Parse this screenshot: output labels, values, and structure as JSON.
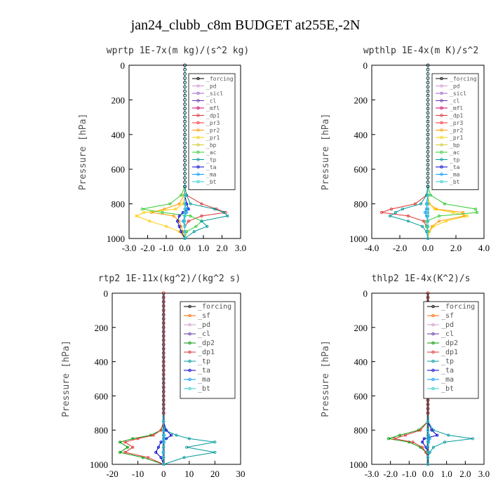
{
  "figure": {
    "title": "jan24_clubb_c8m  BUDGET at255E,-2N"
  },
  "colors": {
    "_forcing": "#000000",
    "_pd": "#cc99cc",
    "_sicl": "#9966cc",
    "_cl": "#6633aa",
    "_mfl": "#cc0066",
    "_dp1": "#dd3333",
    "_pr3": "#ff3333",
    "_pr2": "#ff9900",
    "_pr1": "#ffcc00",
    "_bp": "#cccc33",
    "_ac": "#33cc33",
    "_tp": "#009999",
    "_ta": "#0000cc",
    "_ma": "#0099ff",
    "_bt": "#33cccc",
    "_sf": "#ff6600",
    "_dp2": "#009900"
  },
  "chart_data": [
    {
      "type": "line",
      "title": "wprtp  1E-7x(m kg)/(s^2 kg)",
      "ylabel": "Pressure [hPa]",
      "xlim": [
        -3,
        3
      ],
      "ylim": [
        1000,
        0
      ],
      "xticks": [
        "-3.0",
        "-2.0",
        "-1.0",
        "0.0",
        "1.0",
        "2.0",
        "3.0"
      ],
      "yticks": [
        "0",
        "200",
        "400",
        "600",
        "800",
        "1000"
      ],
      "legend_loc": "upper-right",
      "y": [
        700,
        750,
        800,
        830,
        850,
        870,
        900,
        930,
        960,
        1000
      ],
      "series": [
        {
          "name": "_forcing",
          "values": [
            0,
            0,
            0,
            0,
            0,
            0,
            0,
            0,
            0,
            0
          ]
        },
        {
          "name": "_pd",
          "values": [
            0,
            0,
            0,
            0,
            0,
            0,
            0,
            0,
            0,
            0
          ]
        },
        {
          "name": "_sicl",
          "values": [
            0,
            0,
            0,
            0,
            0,
            0,
            0,
            0,
            0,
            0
          ]
        },
        {
          "name": "_cl",
          "values": [
            0,
            0,
            0,
            0,
            0,
            0,
            0,
            0,
            0,
            0
          ]
        },
        {
          "name": "_mfl",
          "values": [
            0,
            0,
            0,
            0,
            0,
            0,
            0,
            0,
            0,
            0
          ]
        },
        {
          "name": "_dp1",
          "values": [
            0,
            0.1,
            0.9,
            1.7,
            2.2,
            0.9,
            0.2,
            0,
            0,
            0
          ]
        },
        {
          "name": "_pr3",
          "values": [
            0,
            0,
            0,
            0,
            0,
            0,
            0,
            0,
            0,
            0
          ]
        },
        {
          "name": "_pr2",
          "values": [
            0,
            -0.05,
            -0.3,
            -1.1,
            -1.8,
            -0.6,
            -0.3,
            -0.2,
            -0.1,
            0
          ]
        },
        {
          "name": "_pr1",
          "values": [
            0,
            0,
            -0.1,
            -0.5,
            -2.2,
            -2.6,
            -1.9,
            -1.0,
            -0.3,
            0
          ]
        },
        {
          "name": "_bp",
          "values": [
            0,
            0,
            0,
            0,
            0,
            0,
            0,
            0,
            0,
            0
          ]
        },
        {
          "name": "_ac",
          "values": [
            0,
            -0.2,
            -0.8,
            -2.3,
            -1.2,
            0.3,
            0.9,
            0.6,
            0.1,
            0
          ]
        },
        {
          "name": "_tp",
          "values": [
            0,
            0.1,
            0.3,
            1.6,
            2.1,
            2.3,
            0.9,
            1.2,
            0.5,
            0
          ]
        },
        {
          "name": "_ta",
          "values": [
            0,
            0,
            0.1,
            0.2,
            -0.1,
            -0.3,
            -0.4,
            -0.3,
            -0.2,
            0
          ]
        },
        {
          "name": "_ma",
          "values": [
            0,
            0,
            0,
            0.1,
            0.1,
            0,
            -0.1,
            0,
            0,
            0
          ]
        },
        {
          "name": "_bt",
          "values": [
            0,
            0,
            0,
            0,
            0,
            0,
            0,
            0,
            0,
            0
          ]
        }
      ]
    },
    {
      "type": "line",
      "title": "wpthlp  1E-4x(m K)/s^2",
      "ylabel": "Pressure [hPa]",
      "xlim": [
        -4,
        4
      ],
      "ylim": [
        1000,
        0
      ],
      "xticks": [
        "-4.0",
        "-2.0",
        "0.0",
        "2.0",
        "4.0"
      ],
      "yticks": [
        "0",
        "200",
        "400",
        "600",
        "800",
        "1000"
      ],
      "legend_loc": "upper-right",
      "y": [
        700,
        750,
        800,
        830,
        850,
        870,
        900,
        930,
        960,
        1000
      ],
      "series": [
        {
          "name": "_forcing",
          "values": [
            0,
            0,
            0,
            0,
            0,
            0,
            0,
            0,
            0,
            0
          ]
        },
        {
          "name": "_pd",
          "values": [
            0,
            0,
            0,
            0,
            0,
            0,
            0,
            0,
            0,
            0
          ]
        },
        {
          "name": "_sicl",
          "values": [
            0,
            0,
            0,
            0,
            0,
            0,
            0,
            0,
            0,
            0
          ]
        },
        {
          "name": "_cl",
          "values": [
            0,
            0,
            0,
            0,
            0,
            0,
            0,
            0,
            0,
            0
          ]
        },
        {
          "name": "_mfl",
          "values": [
            0,
            0,
            0,
            0,
            0,
            0,
            0,
            0,
            0,
            0
          ]
        },
        {
          "name": "_dp1",
          "values": [
            0,
            -0.1,
            -0.9,
            -2.6,
            -3.3,
            -1.4,
            -0.3,
            -0.1,
            0,
            0
          ]
        },
        {
          "name": "_pr3",
          "values": [
            0,
            0,
            0,
            0,
            0,
            0,
            0,
            0,
            0,
            0
          ]
        },
        {
          "name": "_pr2",
          "values": [
            0,
            0,
            0.1,
            0.6,
            2.5,
            2.6,
            0.8,
            0.3,
            0.1,
            0
          ]
        },
        {
          "name": "_pr1",
          "values": [
            0,
            0,
            0.1,
            0.5,
            1.8,
            2.8,
            1.3,
            0.4,
            0.1,
            0
          ]
        },
        {
          "name": "_bp",
          "values": [
            0,
            0,
            0,
            0,
            0,
            0,
            0,
            0,
            0,
            0
          ]
        },
        {
          "name": "_ac",
          "values": [
            0,
            0.2,
            1.2,
            3.4,
            3.5,
            0.8,
            -0.1,
            -0.1,
            0,
            0
          ]
        },
        {
          "name": "_tp",
          "values": [
            0,
            -0.1,
            -0.5,
            -1.8,
            -2.3,
            -2.7,
            -1.4,
            -0.4,
            -0.1,
            0
          ]
        },
        {
          "name": "_ta",
          "values": [
            0,
            0,
            0,
            0,
            0,
            0,
            0,
            0,
            0,
            0
          ]
        },
        {
          "name": "_ma",
          "values": [
            0,
            0,
            -0.1,
            -0.1,
            -0.2,
            -0.1,
            0,
            0,
            0,
            0
          ]
        },
        {
          "name": "_bt",
          "values": [
            0,
            0,
            0,
            0,
            0,
            0,
            0,
            0,
            0,
            0
          ]
        }
      ]
    },
    {
      "type": "line",
      "title": "rtp2  1E-11x(kg^2)/(kg^2 s)",
      "ylabel": "Pressure [hPa]",
      "xlim": [
        -20,
        30
      ],
      "ylim": [
        1000,
        0
      ],
      "xticks": [
        "-20",
        "-10",
        "0",
        "10",
        "20",
        "30"
      ],
      "yticks": [
        "0",
        "200",
        "400",
        "600",
        "800",
        "1000"
      ],
      "legend_loc": "upper-right",
      "y": [
        750,
        800,
        830,
        850,
        870,
        900,
        930,
        960,
        1000
      ],
      "series": [
        {
          "name": "_forcing",
          "values": [
            0,
            0,
            0,
            0,
            0,
            0,
            0,
            0,
            0
          ]
        },
        {
          "name": "_sf",
          "values": [
            0,
            0,
            0,
            0,
            0,
            0,
            0,
            0,
            0
          ]
        },
        {
          "name": "_pd",
          "values": [
            0,
            0,
            0,
            0,
            0,
            0,
            0,
            0,
            0
          ]
        },
        {
          "name": "_cl",
          "values": [
            0,
            0,
            0,
            0,
            0,
            0,
            0,
            0,
            0
          ]
        },
        {
          "name": "_dp2",
          "values": [
            0,
            -1,
            -5,
            -12,
            -17,
            -14,
            -17,
            -8,
            0
          ]
        },
        {
          "name": "_dp1",
          "values": [
            0,
            -1,
            -4,
            -10,
            -15,
            -12,
            -15,
            -6,
            0
          ]
        },
        {
          "name": "_tp",
          "values": [
            0,
            0.5,
            5,
            10,
            20,
            9,
            20,
            8,
            0
          ]
        },
        {
          "name": "_ta",
          "values": [
            0,
            1,
            3,
            1,
            -1,
            -2,
            -3,
            -1,
            0
          ]
        },
        {
          "name": "_ma",
          "values": [
            0,
            0,
            0.2,
            0.3,
            0.2,
            0,
            -0.2,
            0,
            0
          ]
        },
        {
          "name": "_bt",
          "values": [
            0,
            0,
            0,
            0,
            0,
            0,
            0,
            0,
            0
          ]
        }
      ]
    },
    {
      "type": "line",
      "title": "thlp2  1E-4x(K^2)/s",
      "ylabel": "Pressure [hPa]",
      "xlim": [
        -3,
        3
      ],
      "ylim": [
        1000,
        0
      ],
      "xticks": [
        "-3.0",
        "-2.0",
        "-1.0",
        "0.0",
        "1.0",
        "2.0",
        "3.0"
      ],
      "yticks": [
        "0",
        "200",
        "400",
        "600",
        "800",
        "1000"
      ],
      "legend_loc": "upper-right",
      "y": [
        750,
        800,
        830,
        850,
        870,
        900,
        930,
        960,
        1000
      ],
      "series": [
        {
          "name": "_forcing",
          "values": [
            0,
            0,
            0,
            0,
            0,
            0,
            0,
            0,
            0
          ]
        },
        {
          "name": "_sf",
          "values": [
            0,
            0,
            0,
            0,
            0,
            0,
            0,
            0,
            0
          ]
        },
        {
          "name": "_pd",
          "values": [
            0,
            0,
            0,
            0,
            0,
            0,
            0,
            0,
            0
          ]
        },
        {
          "name": "_cl",
          "values": [
            0,
            0,
            0,
            0,
            0,
            0,
            0,
            0,
            0
          ]
        },
        {
          "name": "_dp2",
          "values": [
            0,
            -0.5,
            -1.5,
            -2.1,
            -1.0,
            -0.4,
            -0.1,
            0,
            0
          ]
        },
        {
          "name": "_dp1",
          "values": [
            0,
            -0.4,
            -1.2,
            -1.8,
            -0.8,
            -0.3,
            -0.1,
            0,
            0
          ]
        },
        {
          "name": "_tp",
          "values": [
            0,
            0.3,
            1.1,
            2.4,
            0.9,
            0.3,
            0.1,
            0,
            0
          ]
        },
        {
          "name": "_ta",
          "values": [
            0,
            0.2,
            0.5,
            -0.2,
            -0.3,
            -0.1,
            0,
            0,
            0
          ]
        },
        {
          "name": "_ma",
          "values": [
            0,
            0,
            0.05,
            0.1,
            0.05,
            0,
            0,
            0,
            0
          ]
        },
        {
          "name": "_bt",
          "values": [
            0,
            0,
            0,
            0,
            0,
            0,
            0,
            0,
            0
          ]
        }
      ]
    }
  ]
}
